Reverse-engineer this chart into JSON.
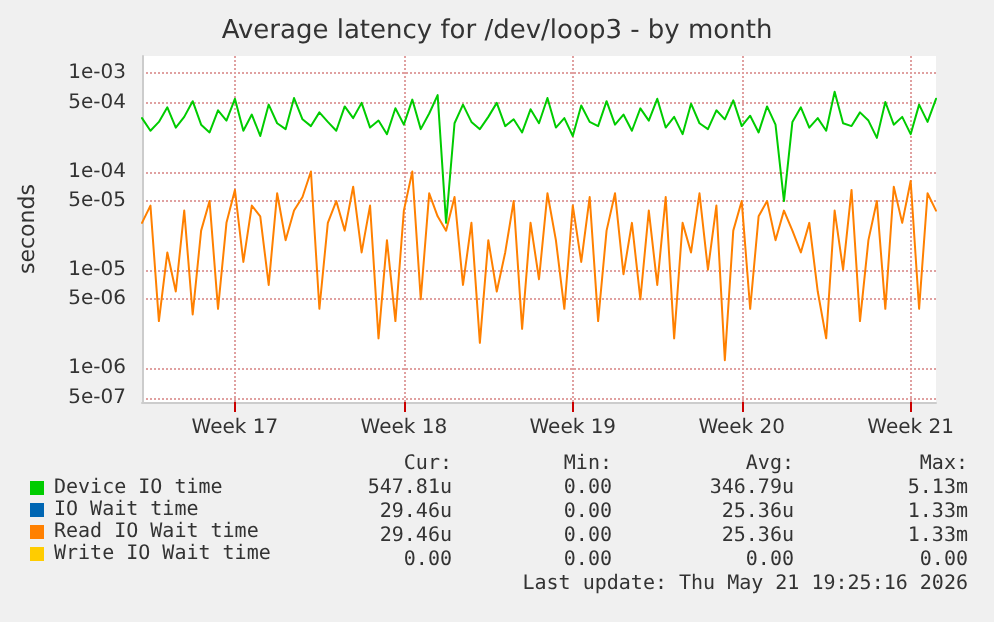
{
  "chart_data": {
    "type": "line",
    "title": "Average latency for /dev/loop3 - by month",
    "ylabel": "seconds",
    "categories": [
      null,
      null,
      null,
      null,
      null,
      null,
      null,
      null,
      null,
      null,
      null,
      "Week 17",
      null,
      null,
      null,
      null,
      null,
      null,
      null,
      null,
      null,
      null,
      null,
      null,
      null,
      null,
      null,
      null,
      null,
      null,
      null,
      "Week 18",
      null,
      null,
      null,
      null,
      null,
      null,
      null,
      null,
      null,
      null,
      null,
      null,
      null,
      null,
      null,
      null,
      null,
      null,
      null,
      "Week 19",
      null,
      null,
      null,
      null,
      null,
      null,
      null,
      null,
      null,
      null,
      null,
      null,
      null,
      null,
      null,
      null,
      null,
      null,
      null,
      "Week 20",
      null,
      null,
      null,
      null,
      null,
      null,
      null,
      null,
      null,
      null,
      null,
      null,
      null,
      null,
      null,
      null,
      null,
      null,
      null,
      "Week 21",
      null,
      null,
      null
    ],
    "series": [
      {
        "name": "Device IO time",
        "color": "#00cc00",
        "values": [
          0.00035,
          0.00026,
          0.00032,
          0.00045,
          0.00028,
          0.00036,
          0.00052,
          0.0003,
          0.00025,
          0.00042,
          0.00033,
          0.00055,
          0.00026,
          0.00038,
          0.00023,
          0.00048,
          0.00031,
          0.00027,
          0.00056,
          0.00034,
          0.00029,
          0.0004,
          0.00032,
          0.00026,
          0.00046,
          0.00035,
          0.0005,
          0.00028,
          0.00033,
          0.00024,
          0.00044,
          0.0003,
          0.00054,
          0.00027,
          0.00039,
          0.0006,
          3e-05,
          0.00031,
          0.00048,
          0.00032,
          0.00027,
          0.00036,
          0.0005,
          0.00029,
          0.00034,
          0.00025,
          0.00043,
          0.00031,
          0.00056,
          0.00028,
          0.00035,
          0.00023,
          0.00047,
          0.00032,
          0.00029,
          0.00052,
          0.0003,
          0.00038,
          0.00026,
          0.00044,
          0.00033,
          0.00055,
          0.00028,
          0.00036,
          0.00024,
          0.00049,
          0.00031,
          0.00027,
          0.00042,
          0.00034,
          0.00053,
          0.00029,
          0.00037,
          0.00025,
          0.00046,
          0.0003,
          5e-05,
          0.00032,
          0.00045,
          0.00028,
          0.00035,
          0.00026,
          0.00065,
          0.00031,
          0.00029,
          0.0004,
          0.00033,
          0.00022,
          0.00051,
          0.0003,
          0.00036,
          0.00024,
          0.00048,
          0.00032,
          0.00055
        ]
      },
      {
        "name": "IO Wait time",
        "color": "#0066b3",
        "values": [
          null,
          null,
          null,
          null,
          null,
          null,
          null,
          null,
          null,
          null,
          null,
          null,
          null,
          null,
          null,
          null,
          null,
          null,
          null,
          null,
          null,
          null,
          null,
          null,
          null,
          null,
          null,
          null,
          null,
          null,
          null,
          null,
          null,
          null,
          null,
          null,
          null,
          null,
          null,
          null,
          null,
          null,
          null,
          null,
          null,
          null,
          null,
          null,
          null,
          null,
          null,
          null,
          null,
          null,
          null,
          null,
          null,
          null,
          null,
          null,
          null,
          null,
          null,
          null,
          null,
          null,
          null,
          null,
          null,
          null,
          null,
          null,
          null,
          null,
          null,
          null,
          null,
          null,
          null,
          null,
          null,
          null,
          null,
          null,
          null,
          null,
          null,
          null,
          null,
          null,
          null,
          null,
          null,
          null,
          null
        ]
      },
      {
        "name": "Read IO Wait time",
        "color": "#ff8000",
        "values": [
          3e-05,
          4.5e-05,
          3e-06,
          1.5e-05,
          6e-06,
          4e-05,
          3.5e-06,
          2.5e-05,
          5e-05,
          4e-06,
          3e-05,
          6.5e-05,
          1.2e-05,
          4.5e-05,
          3.5e-05,
          7e-06,
          6e-05,
          2e-05,
          4e-05,
          5.5e-05,
          0.0001,
          4e-06,
          3e-05,
          5e-05,
          2.5e-05,
          7e-05,
          1.5e-05,
          4.5e-05,
          2e-06,
          2e-05,
          3e-06,
          4e-05,
          0.0001,
          5e-06,
          6e-05,
          3.5e-05,
          2.5e-05,
          5.5e-05,
          7e-06,
          3e-05,
          1.8e-06,
          2e-05,
          6e-06,
          1.5e-05,
          5e-05,
          2.5e-06,
          3e-05,
          8e-06,
          6e-05,
          2e-05,
          4e-06,
          4.5e-05,
          1.2e-05,
          5.5e-05,
          3e-06,
          2.5e-05,
          6e-05,
          9e-06,
          3e-05,
          5e-06,
          4e-05,
          7e-06,
          5.5e-05,
          2e-06,
          3e-05,
          1.5e-05,
          6e-05,
          1e-05,
          4.5e-05,
          1.2e-06,
          2.5e-05,
          5e-05,
          4e-06,
          3.5e-05,
          5e-05,
          2e-05,
          4e-05,
          2.5e-05,
          1.5e-05,
          3e-05,
          6e-06,
          2e-06,
          4e-05,
          1e-05,
          6.5e-05,
          3e-06,
          2e-05,
          5e-05,
          4e-06,
          7e-05,
          3e-05,
          8e-05,
          4e-06,
          6e-05,
          4e-05
        ]
      },
      {
        "name": "Write IO Wait time",
        "color": "#ffcc00",
        "values": [
          null,
          null,
          null,
          null,
          null,
          null,
          null,
          null,
          null,
          null,
          null,
          null,
          null,
          null,
          null,
          null,
          null,
          null,
          null,
          null,
          null,
          null,
          null,
          null,
          null,
          null,
          null,
          null,
          null,
          null,
          null,
          null,
          null,
          null,
          null,
          null,
          null,
          null,
          null,
          null,
          null,
          null,
          null,
          null,
          null,
          null,
          null,
          null,
          null,
          null,
          null,
          null,
          null,
          null,
          null,
          null,
          null,
          null,
          null,
          null,
          null,
          null,
          null,
          null,
          null,
          null,
          null,
          null,
          null,
          null,
          null,
          null,
          null,
          null,
          null,
          null,
          null,
          null,
          null,
          null,
          null,
          null,
          null,
          null,
          null,
          null,
          null,
          null,
          null,
          null,
          null,
          null,
          null,
          null,
          null
        ]
      }
    ],
    "ylim": [
      4.5e-07,
      0.0015
    ],
    "yticks": [
      {
        "value": 5e-07,
        "label": "5e-07"
      },
      {
        "value": 1e-06,
        "label": "1e-06"
      },
      {
        "value": 5e-06,
        "label": "5e-06"
      },
      {
        "value": 1e-05,
        "label": "1e-05"
      },
      {
        "value": 5e-05,
        "label": "5e-05"
      },
      {
        "value": 0.0001,
        "label": "1e-04"
      },
      {
        "value": 0.0005,
        "label": "5e-04"
      },
      {
        "value": 0.001,
        "label": "1e-03"
      }
    ],
    "log": "y",
    "grid": true,
    "legend": "bottom left",
    "marker": "none",
    "line_style": "solid",
    "annotations": [
      "Cur:",
      "Min:",
      "Avg:",
      "Max:",
      "547.81u",
      "0.00",
      "346.79u",
      "5.13m",
      "29.46u",
      "0.00",
      "25.36u",
      "1.33m",
      "29.46u",
      "0.00",
      "25.36u",
      "1.33m",
      "0.00",
      "0.00",
      "0.00",
      "0.00",
      "Last update: Thu May 21 19:25:16 2026"
    ]
  }
}
